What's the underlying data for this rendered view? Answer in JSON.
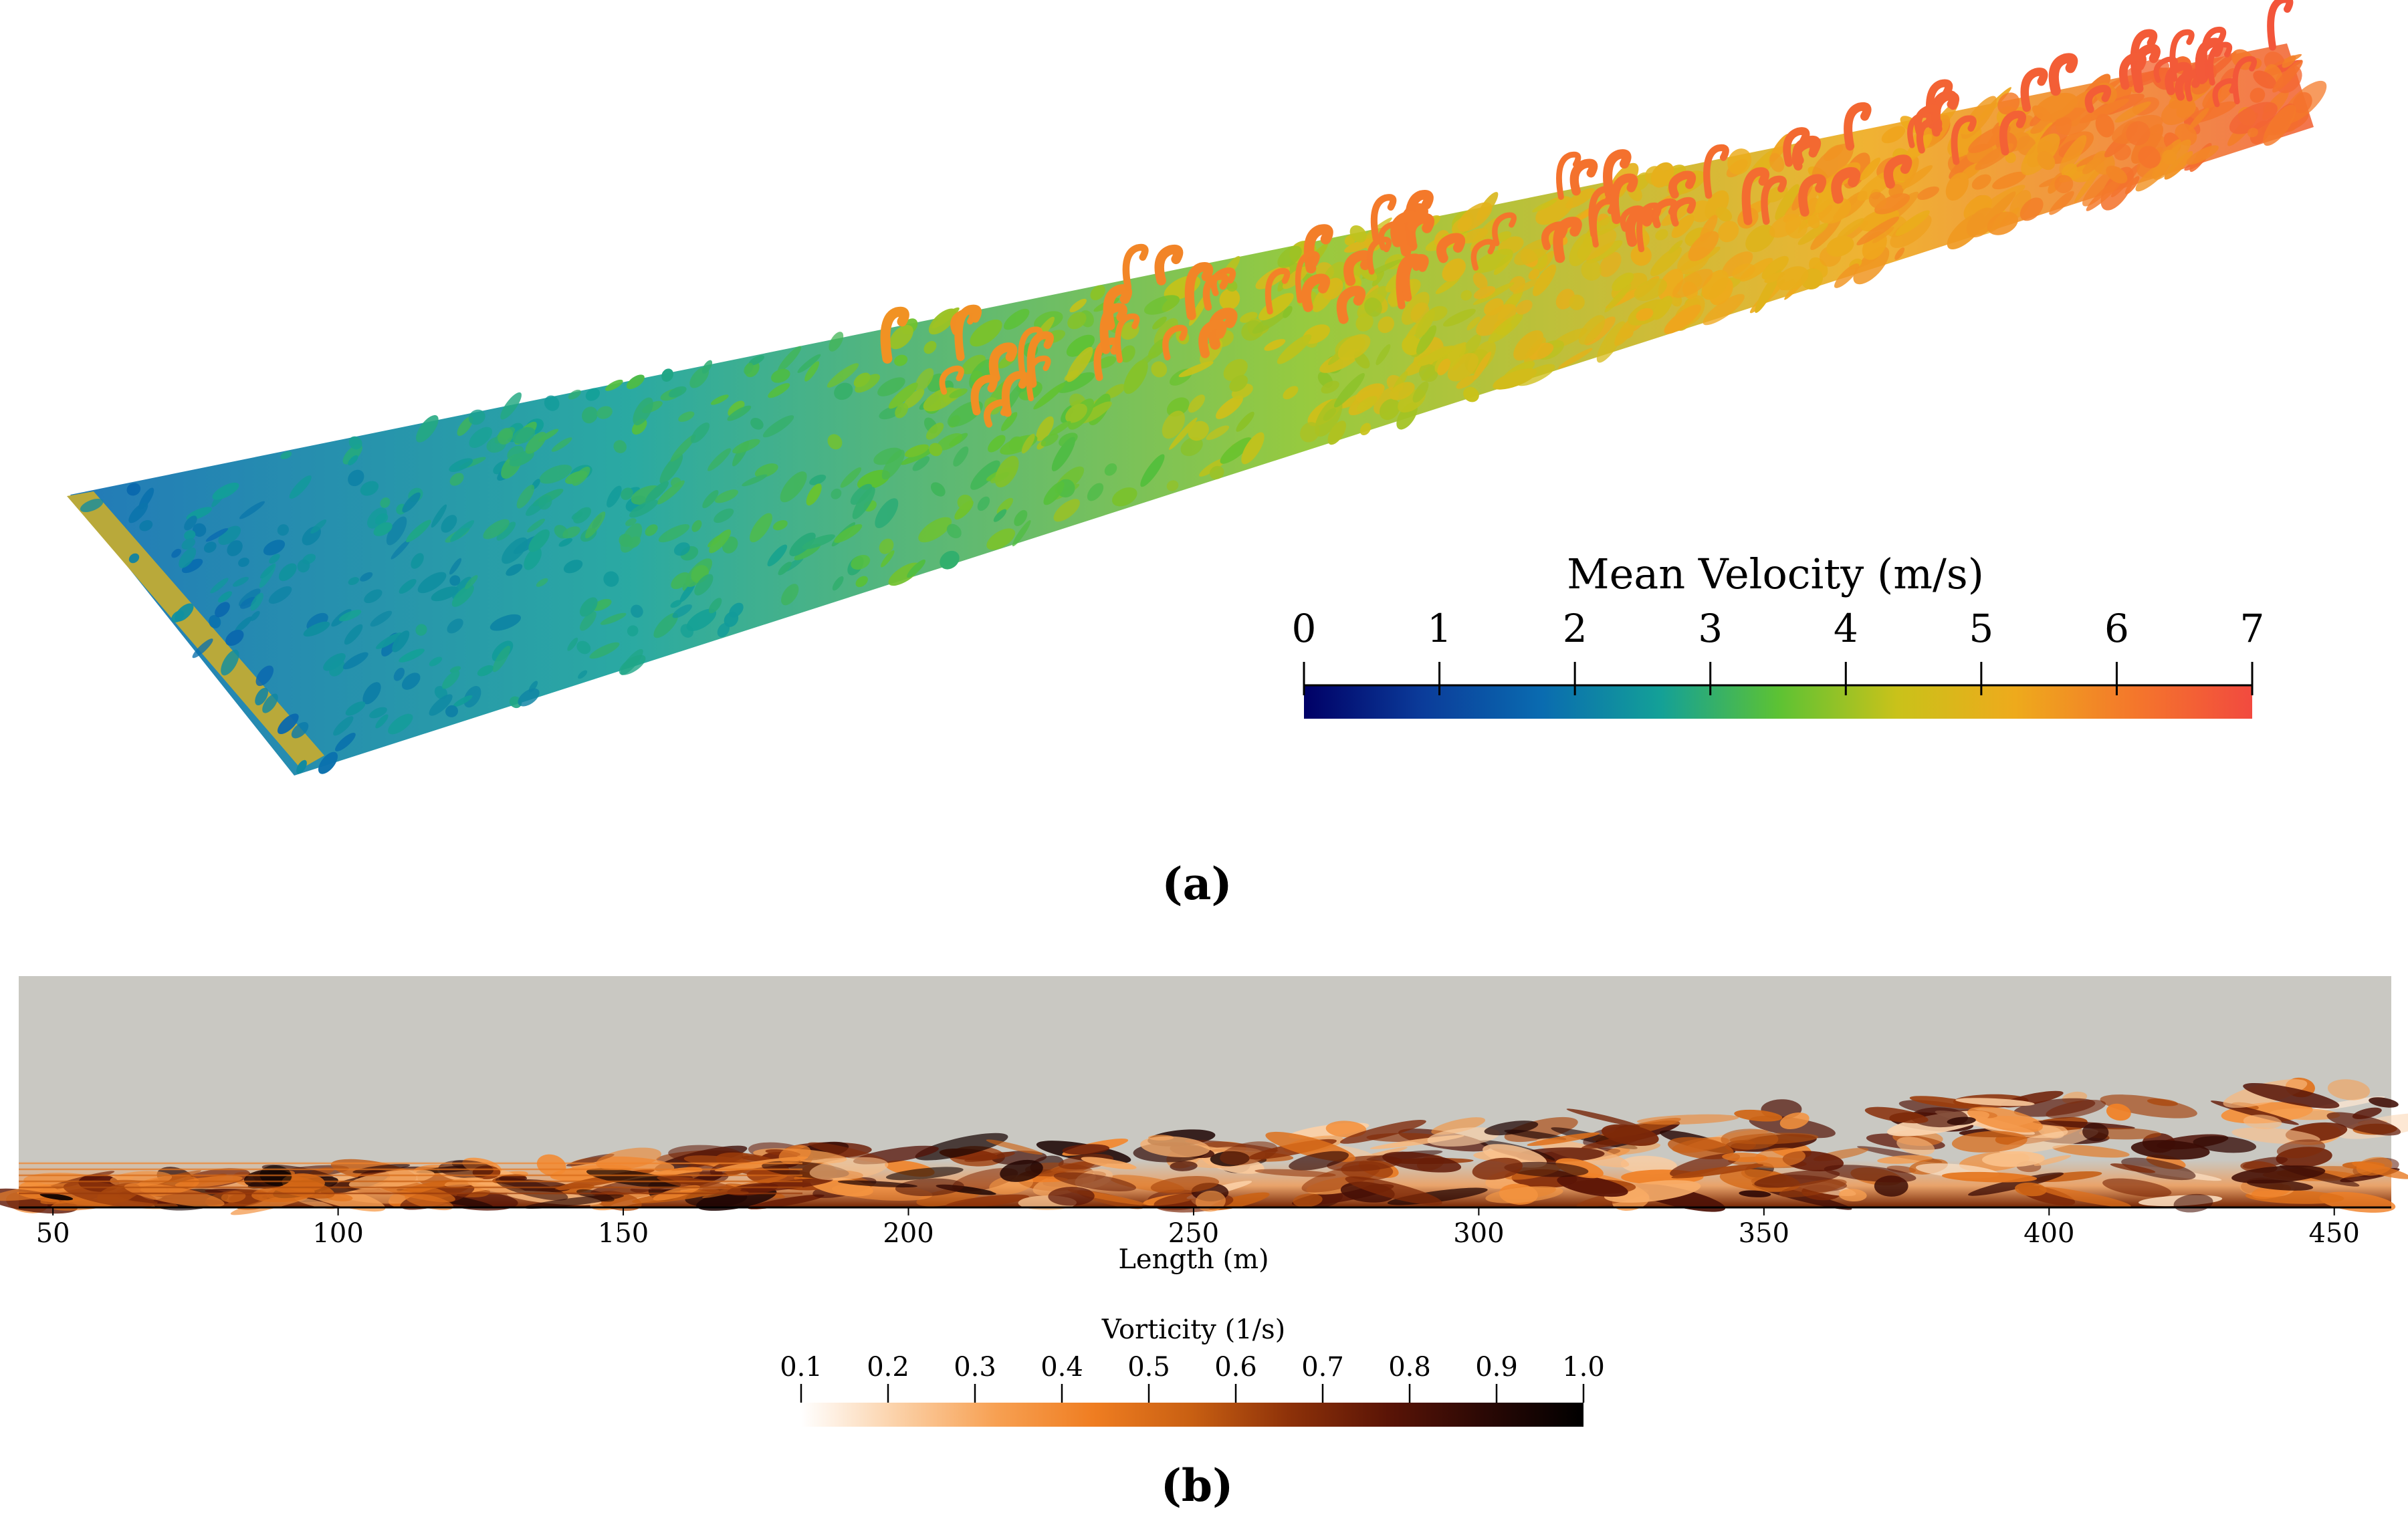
{
  "panel_a": {
    "caption": "(a)",
    "colorbar": {
      "title": "Mean Velocity (m/s)",
      "min": 0,
      "max": 7,
      "ticks": [
        "0",
        "1",
        "2",
        "3",
        "4",
        "5",
        "6",
        "7"
      ],
      "colormap": [
        "#000066",
        "#0b3c9a",
        "#0a6bb0",
        "#13a098",
        "#5cc234",
        "#c9c21a",
        "#eeaa1c",
        "#f4772b",
        "#f24a3f"
      ]
    }
  },
  "panel_b": {
    "caption": "(b)",
    "xaxis": {
      "label": "Length (m)",
      "min": 44,
      "max": 460,
      "ticks": [
        "50",
        "100",
        "150",
        "200",
        "250",
        "300",
        "350",
        "400",
        "450"
      ]
    },
    "colorbar": {
      "title": "Vorticity (1/s)",
      "min": 0.1,
      "max": 1.0,
      "ticks": [
        "0.1",
        "0.2",
        "0.3",
        "0.4",
        "0.5",
        "0.6",
        "0.7",
        "0.8",
        "0.9",
        "1.0"
      ],
      "colormap": [
        "#ffffff",
        "#fbd0a6",
        "#f7a052",
        "#ef7d21",
        "#c85f12",
        "#8d3109",
        "#5a1406",
        "#2a0805",
        "#000000"
      ]
    },
    "background_color": "#c9c8c2"
  }
}
